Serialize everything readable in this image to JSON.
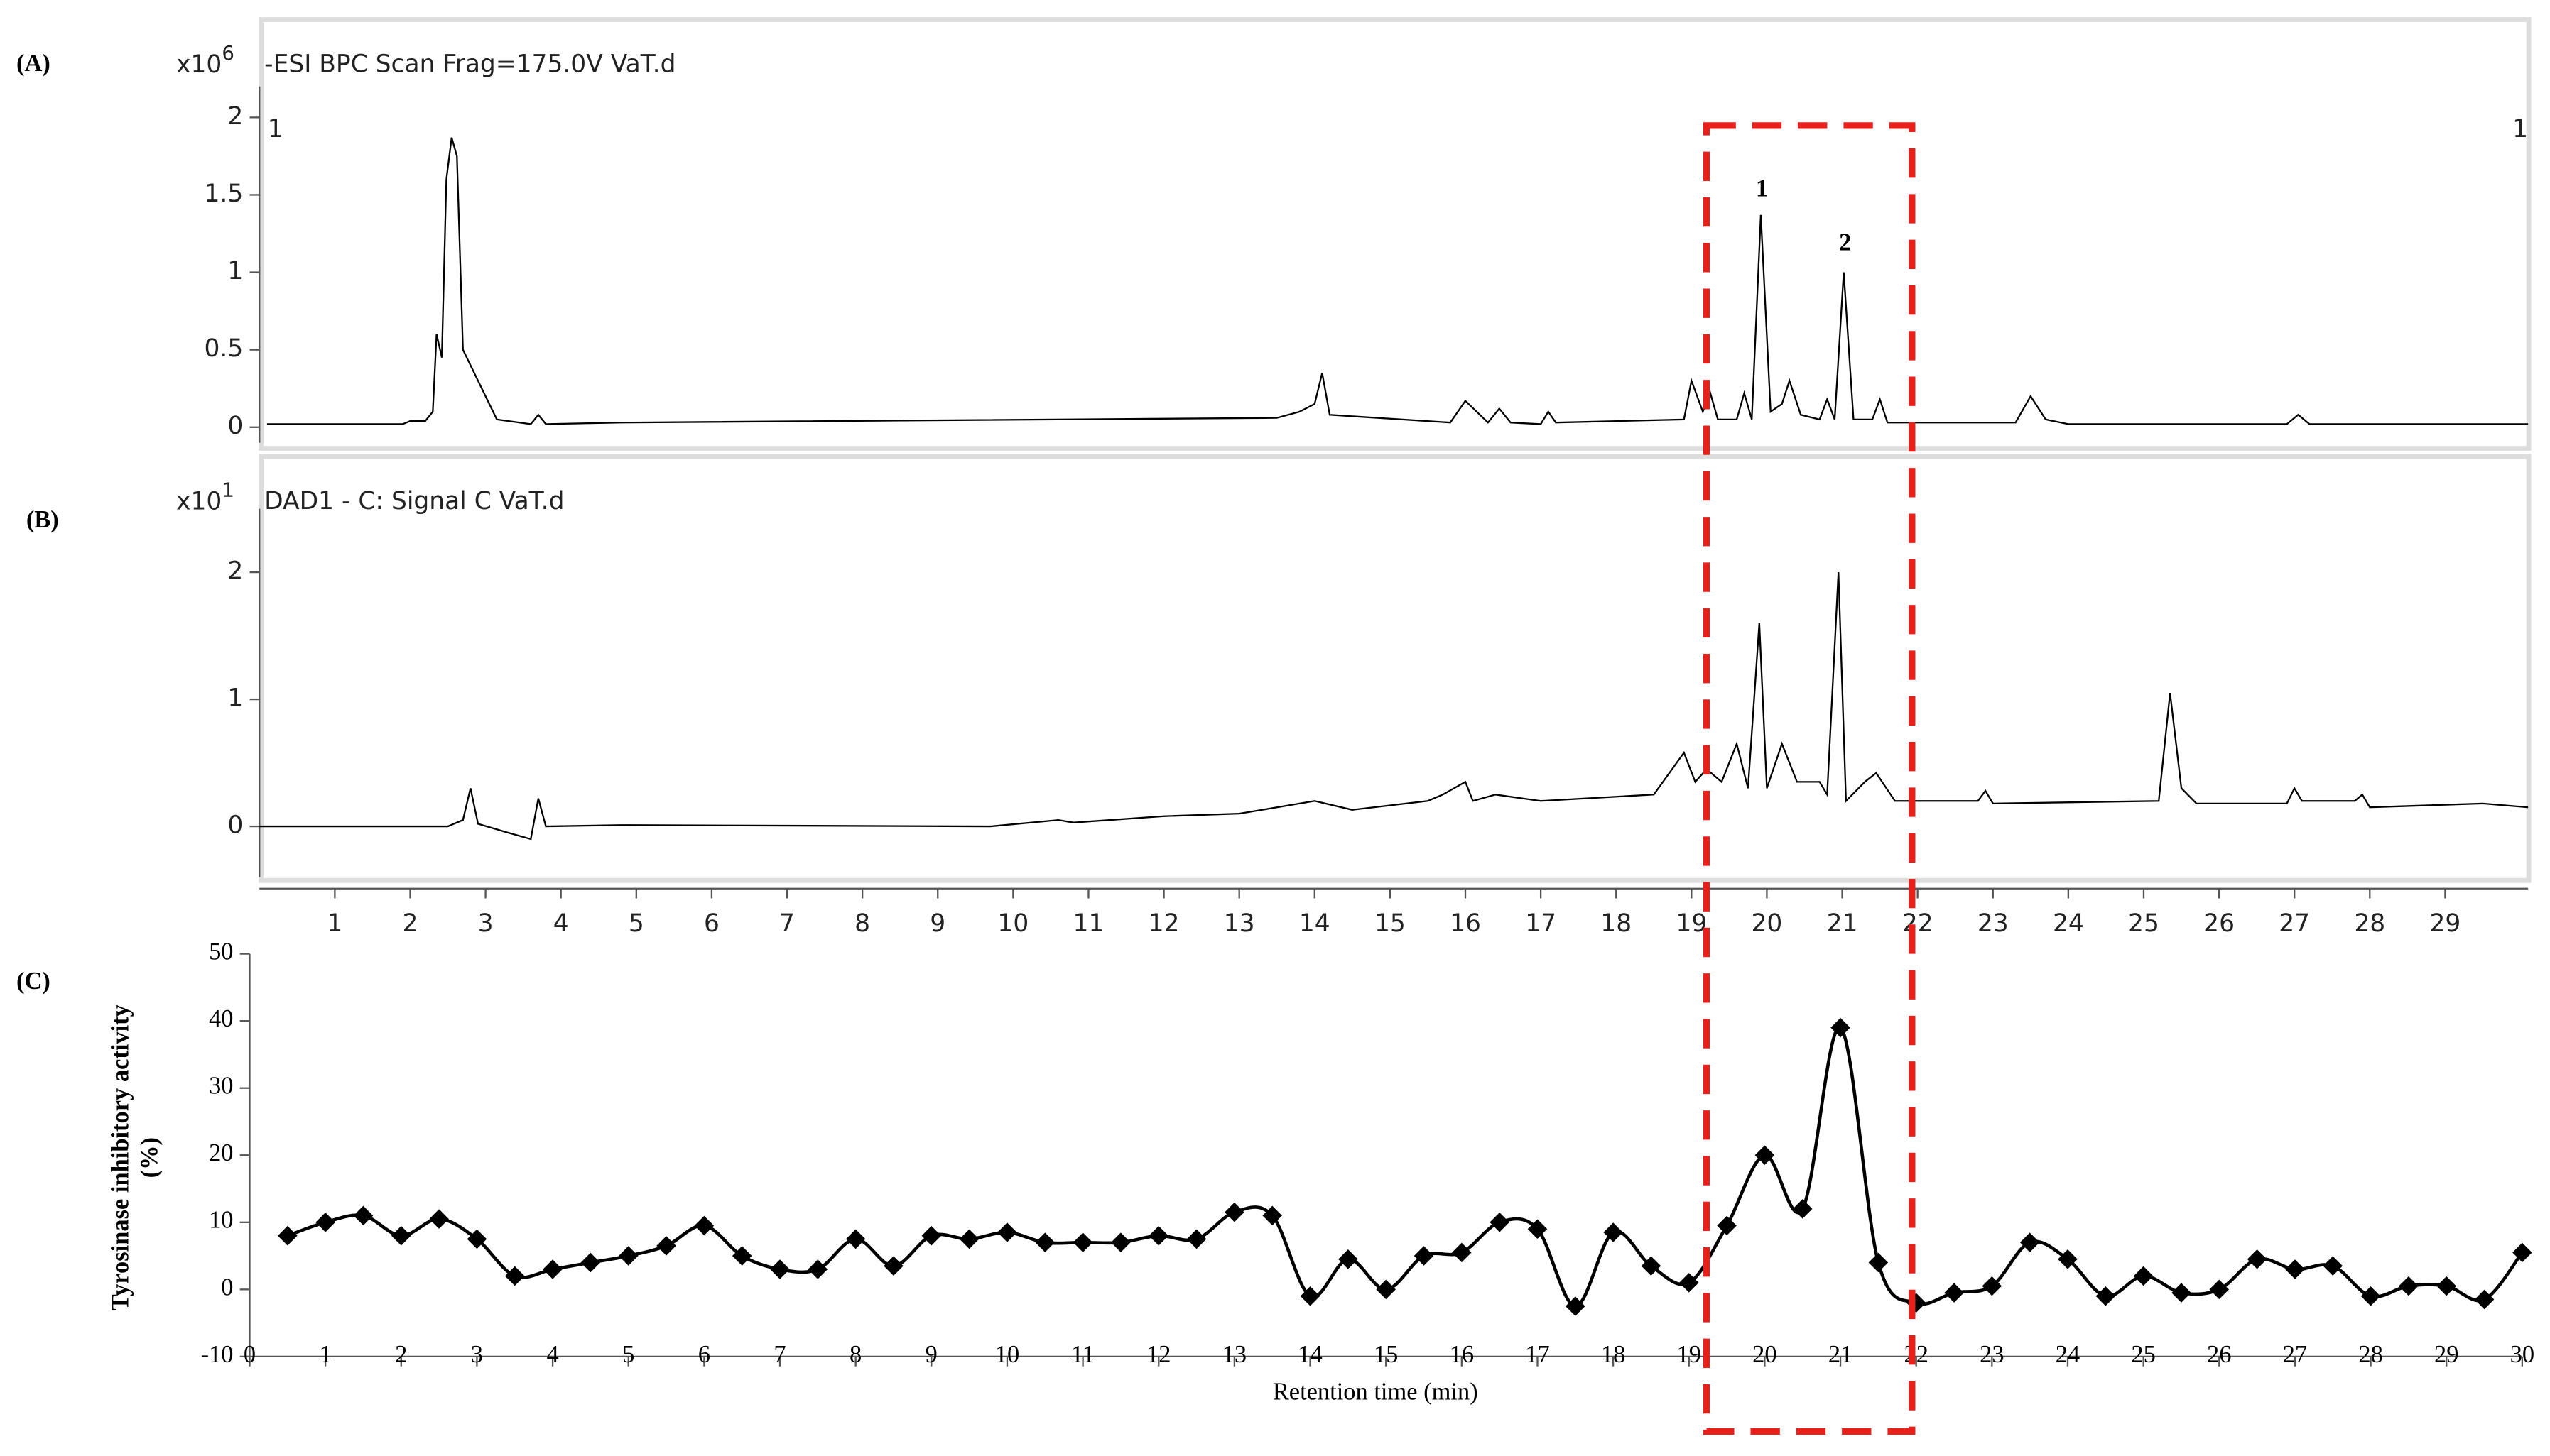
{
  "chart_data": [
    {
      "type": "line",
      "label": "(A)",
      "scale_label": "x10",
      "scale_exponent": "6",
      "title": "-ESI BPC Scan Frag=175.0V VaT.d",
      "corner_labels": [
        "1",
        "1"
      ],
      "peak_labels": [
        "1",
        "2"
      ],
      "color": "#000000",
      "xlim": [
        0,
        30.1
      ],
      "ylim": [
        -0.1,
        2.2
      ],
      "yticks": [
        0,
        0.5,
        1,
        1.5,
        2
      ],
      "x": [
        0.1,
        1.9,
        2.0,
        2.2,
        2.3,
        2.35,
        2.42,
        2.48,
        2.55,
        2.62,
        2.7,
        2.85,
        3.0,
        3.15,
        3.6,
        3.7,
        3.8,
        4.8,
        13.5,
        13.8,
        14.0,
        14.1,
        14.2,
        15.8,
        16.0,
        16.15,
        16.3,
        16.45,
        16.6,
        17.0,
        17.1,
        17.2,
        18.9,
        19.0,
        19.15,
        19.25,
        19.35,
        19.6,
        19.7,
        19.8,
        19.92,
        20.05,
        20.2,
        20.3,
        20.45,
        20.7,
        20.8,
        20.9,
        21.02,
        21.15,
        21.4,
        21.5,
        21.6,
        23.3,
        23.5,
        23.7,
        24.0,
        26.9,
        27.05,
        27.2,
        29.5,
        30.1
      ],
      "values": [
        0.02,
        0.02,
        0.04,
        0.04,
        0.1,
        0.6,
        0.45,
        1.6,
        1.87,
        1.75,
        0.5,
        0.35,
        0.2,
        0.05,
        0.02,
        0.08,
        0.02,
        0.03,
        0.06,
        0.1,
        0.15,
        0.35,
        0.08,
        0.03,
        0.17,
        0.1,
        0.03,
        0.12,
        0.03,
        0.02,
        0.1,
        0.03,
        0.05,
        0.3,
        0.1,
        0.22,
        0.05,
        0.05,
        0.22,
        0.05,
        1.37,
        0.1,
        0.15,
        0.3,
        0.08,
        0.05,
        0.18,
        0.05,
        1.0,
        0.05,
        0.05,
        0.18,
        0.03,
        0.03,
        0.2,
        0.05,
        0.02,
        0.02,
        0.08,
        0.02,
        0.02,
        0.02
      ]
    },
    {
      "type": "line",
      "label": "(B)",
      "scale_label": "x10",
      "scale_exponent": "1",
      "title": "DAD1 - C: Signal C VaT.d",
      "color": "#000000",
      "xlim": [
        0,
        30.1
      ],
      "xticks": [
        1,
        2,
        3,
        4,
        5,
        6,
        7,
        8,
        9,
        10,
        11,
        12,
        13,
        14,
        15,
        16,
        17,
        18,
        19,
        20,
        21,
        22,
        23,
        24,
        25,
        26,
        27,
        28,
        29
      ],
      "ylim": [
        -0.4,
        2.5
      ],
      "yticks": [
        0,
        1,
        2
      ],
      "x": [
        0,
        2.5,
        2.7,
        2.8,
        2.9,
        3.3,
        3.6,
        3.7,
        3.8,
        4.8,
        9.7,
        10.6,
        10.8,
        12,
        13,
        13.5,
        14,
        14.5,
        15.5,
        15.7,
        16.0,
        16.1,
        16.4,
        17,
        18.5,
        18.9,
        19.05,
        19.2,
        19.4,
        19.6,
        19.75,
        19.9,
        20.0,
        20.2,
        20.4,
        20.7,
        20.8,
        20.95,
        21.05,
        21.3,
        21.45,
        21.7,
        22.8,
        22.9,
        23.0,
        25.2,
        25.35,
        25.5,
        25.7,
        26.9,
        27.0,
        27.1,
        27.8,
        27.9,
        28.0,
        29.5,
        30.1
      ],
      "values": [
        0,
        0,
        0.05,
        0.3,
        0.02,
        -0.05,
        -0.1,
        0.22,
        0,
        0.01,
        0,
        0.05,
        0.03,
        0.08,
        0.1,
        0.15,
        0.2,
        0.13,
        0.2,
        0.25,
        0.35,
        0.2,
        0.25,
        0.2,
        0.25,
        0.58,
        0.35,
        0.45,
        0.35,
        0.65,
        0.3,
        1.6,
        0.3,
        0.65,
        0.35,
        0.35,
        0.25,
        2.0,
        0.2,
        0.35,
        0.42,
        0.2,
        0.2,
        0.28,
        0.18,
        0.2,
        1.05,
        0.3,
        0.18,
        0.18,
        0.3,
        0.2,
        0.2,
        0.25,
        0.15,
        0.18,
        0.15
      ]
    },
    {
      "type": "line",
      "label": "(C)",
      "y_label": [
        "Tyrosinase inhibitory activity",
        "(%)"
      ],
      "x_label": "Retention time (min)",
      "color": "#000000",
      "marker": "diamond",
      "xlim": [
        0,
        30
      ],
      "xticks": [
        0,
        1,
        2,
        3,
        4,
        5,
        6,
        7,
        8,
        9,
        10,
        11,
        12,
        13,
        14,
        15,
        16,
        17,
        18,
        19,
        20,
        21,
        22,
        23,
        24,
        25,
        26,
        27,
        28,
        29,
        30
      ],
      "ylim": [
        -10,
        50
      ],
      "yticks": [
        -10,
        0,
        10,
        20,
        30,
        40,
        50
      ],
      "x": [
        0.5,
        1,
        1.5,
        2,
        2.5,
        3,
        3.5,
        4,
        4.5,
        5,
        5.5,
        6,
        6.5,
        7,
        7.5,
        8,
        8.5,
        9,
        9.5,
        10,
        10.5,
        11,
        11.5,
        12,
        12.5,
        13,
        13.5,
        14,
        14.5,
        15,
        15.5,
        16,
        16.5,
        17,
        17.5,
        18,
        18.5,
        19,
        19.5,
        20,
        20.5,
        21,
        21.5,
        22,
        22.5,
        23,
        23.5,
        24,
        24.5,
        25,
        25.5,
        26,
        26.5,
        27,
        27.5,
        28,
        28.5,
        29,
        29.5,
        30
      ],
      "values": [
        8,
        10,
        11,
        8,
        10.5,
        7.5,
        2,
        3,
        4,
        5,
        6.5,
        9.5,
        5,
        3,
        3,
        7.5,
        3.5,
        8,
        7.5,
        8.5,
        7,
        7,
        7,
        8,
        7.5,
        11.5,
        11,
        -1,
        4.5,
        0,
        5,
        5.5,
        10,
        9,
        -2.5,
        8.5,
        3.5,
        1,
        9.5,
        20,
        12,
        39,
        4,
        -2,
        -0.5,
        0.5,
        7,
        4.5,
        -1,
        2,
        -0.5,
        0,
        4.5,
        3,
        3.5,
        -1,
        0.5,
        0.5,
        -1.5,
        5.5
      ]
    }
  ]
}
